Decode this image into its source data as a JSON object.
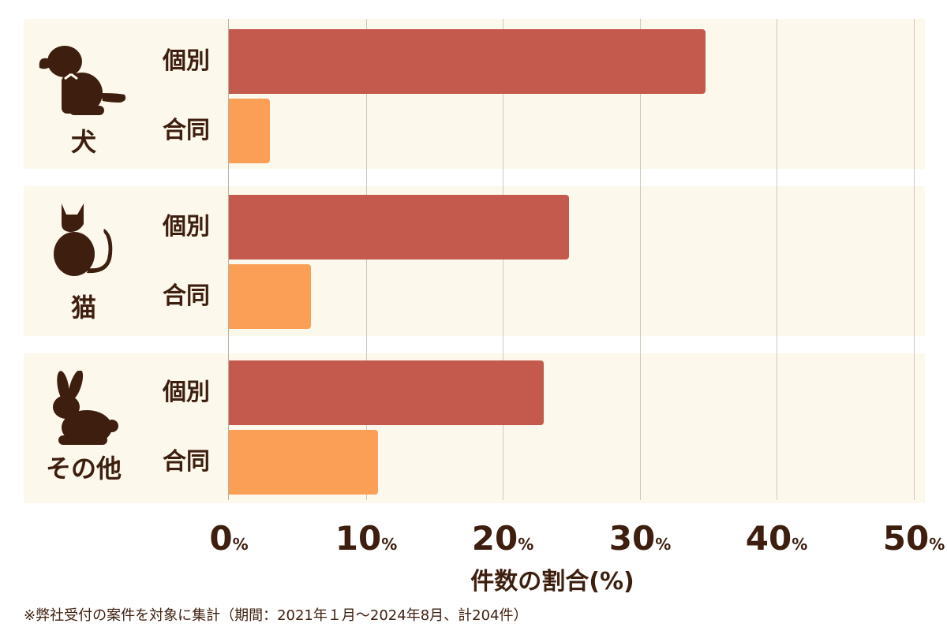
{
  "chart_data": {
    "type": "bar",
    "orientation": "horizontal",
    "groups": [
      {
        "label": "犬",
        "icon": "dog-icon",
        "bars": [
          {
            "label": "個別",
            "value": 34.8
          },
          {
            "label": "合同",
            "value": 3.0
          }
        ]
      },
      {
        "label": "猫",
        "icon": "cat-icon",
        "bars": [
          {
            "label": "個別",
            "value": 24.8
          },
          {
            "label": "合同",
            "value": 6.0
          }
        ]
      },
      {
        "label": "その他",
        "icon": "rabbit-icon",
        "bars": [
          {
            "label": "個別",
            "value": 23.0
          },
          {
            "label": "合同",
            "value": 10.9
          }
        ]
      }
    ],
    "series": [
      {
        "name": "個別",
        "color": "#c45a4d"
      },
      {
        "name": "合同",
        "color": "#fc9f56"
      }
    ],
    "xlim": [
      0,
      50
    ],
    "ticks": [
      {
        "num": "0",
        "unit": "%",
        "value": 0
      },
      {
        "num": "10",
        "unit": "%",
        "value": 10
      },
      {
        "num": "20",
        "unit": "%",
        "value": 20
      },
      {
        "num": "30",
        "unit": "%",
        "value": 30
      },
      {
        "num": "40",
        "unit": "%",
        "value": 40
      },
      {
        "num": "50",
        "unit": "%",
        "value": 50
      }
    ],
    "xlabel": "件数の割合(%)",
    "grid": true,
    "colors": {
      "background": "#fcf8ec",
      "text": "#3e1f0f",
      "grid": "#cfc9bc"
    }
  },
  "footnote": "※弊社受付の案件を対象に集計（期間：2021年１月～2024年8月、計204件）"
}
